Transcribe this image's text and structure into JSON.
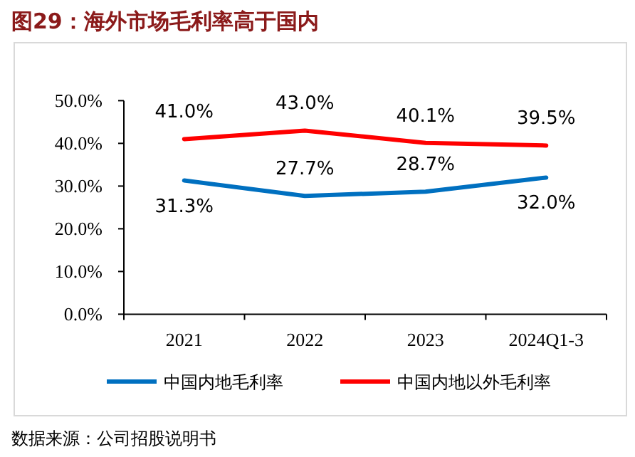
{
  "chart_data": {
    "type": "line",
    "title": "图29：海外市场毛利率高于国内",
    "categories": [
      "2021",
      "2022",
      "2023",
      "2024Q1-3"
    ],
    "series": [
      {
        "name": "中国内地毛利率",
        "color": "#0070c0",
        "values": [
          31.3,
          27.7,
          28.7,
          32.0
        ],
        "value_labels": [
          "31.3%",
          "27.7%",
          "28.7%",
          "32.0%"
        ]
      },
      {
        "name": "中国内地以外毛利率",
        "color": "#ff0000",
        "values": [
          41.0,
          43.0,
          40.1,
          39.5
        ],
        "value_labels": [
          "41.0%",
          "43.0%",
          "40.1%",
          "39.5%"
        ]
      }
    ],
    "ylim": [
      0,
      50
    ],
    "yticks": [
      {
        "value": 0,
        "label": "0.0%"
      },
      {
        "value": 10,
        "label": "10.0%"
      },
      {
        "value": 20,
        "label": "20.0%"
      },
      {
        "value": 30,
        "label": "30.0%"
      },
      {
        "value": 40,
        "label": "40.0%"
      },
      {
        "value": 50,
        "label": "50.0%"
      }
    ],
    "grid": false,
    "legend": "bottom",
    "marker": "none",
    "line_style": "solid",
    "annotations": [
      "数据来源：公司招股说明书"
    ]
  }
}
